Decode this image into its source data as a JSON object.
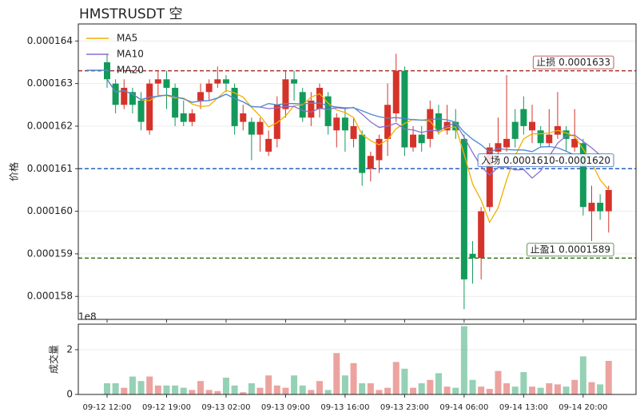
{
  "chart_data": {
    "type": "candlestick",
    "title": "HMSTRUSDT 空",
    "y_label": "价格",
    "legend": "upper left",
    "grid": true,
    "up_color": "#d5332a",
    "down_color": "#139a5a",
    "categories": [
      "09-12 12:00",
      null,
      null,
      null,
      null,
      null,
      null,
      "09-12 19:00",
      null,
      null,
      null,
      null,
      null,
      null,
      "09-13 02:00",
      null,
      null,
      null,
      null,
      null,
      null,
      "09-13 09:00",
      null,
      null,
      null,
      null,
      null,
      null,
      "09-13 16:00",
      null,
      null,
      null,
      null,
      null,
      null,
      "09-13 23:00",
      null,
      null,
      null,
      null,
      null,
      null,
      "09-14 06:00",
      null,
      null,
      null,
      null,
      null,
      null,
      "09-14 13:00",
      null,
      null,
      null,
      null,
      null,
      null,
      "09-14 20:00",
      null,
      null,
      null
    ],
    "open": [
      0.0001635,
      0.000163,
      0.0001625,
      0.0001628,
      0.0001626,
      0.0001619,
      0.000163,
      0.0001631,
      0.0001629,
      0.0001623,
      0.0001621,
      0.0001626,
      0.0001628,
      0.000163,
      0.0001631,
      0.0001629,
      0.0001621,
      0.0001621,
      0.0001618,
      0.0001614,
      0.0001617,
      0.0001624,
      0.0001631,
      0.0001628,
      0.0001622,
      0.0001624,
      0.0001627,
      0.0001619,
      0.0001622,
      0.0001617,
      0.0001618,
      0.000161,
      0.0001612,
      0.0001617,
      0.0001623,
      0.0001633,
      0.0001615,
      0.0001618,
      0.0001617,
      0.0001623,
      0.0001619,
      0.0001621,
      0.0001617,
      0.000159,
      0.0001589,
      0.0001601,
      0.0001614,
      0.0001615,
      0.0001621,
      0.0001624,
      0.0001619,
      0.0001619,
      0.0001616,
      0.0001618,
      0.0001619,
      0.0001615,
      0.0001616,
      0.00016,
      0.0001602,
      0.00016
    ],
    "high": [
      0.0001637,
      0.0001631,
      0.0001631,
      0.0001629,
      0.0001628,
      0.0001631,
      0.0001633,
      0.0001633,
      0.000163,
      0.0001626,
      0.0001624,
      0.000163,
      0.0001631,
      0.0001634,
      0.0001632,
      0.000163,
      0.0001625,
      0.0001622,
      0.0001622,
      0.0001619,
      0.0001627,
      0.0001633,
      0.0001633,
      0.0001629,
      0.0001628,
      0.000163,
      0.0001628,
      0.0001623,
      0.0001624,
      0.0001622,
      0.0001619,
      0.0001614,
      0.0001618,
      0.000163,
      0.0001637,
      0.0001634,
      0.000162,
      0.000162,
      0.0001626,
      0.0001625,
      0.0001625,
      0.0001624,
      0.0001618,
      0.0001593,
      0.0001601,
      0.0001616,
      0.0001622,
      0.0001632,
      0.0001624,
      0.0001627,
      0.0001625,
      0.000162,
      0.0001624,
      0.0001628,
      0.000162,
      0.0001624,
      0.0001617,
      0.0001606,
      0.0001604,
      0.0001606
    ],
    "low": [
      0.0001629,
      0.0001623,
      0.0001624,
      0.0001623,
      0.0001619,
      0.0001618,
      0.0001627,
      0.0001624,
      0.000162,
      0.000162,
      0.000162,
      0.0001624,
      0.0001626,
      0.0001629,
      0.0001628,
      0.0001618,
      0.0001619,
      0.0001612,
      0.0001614,
      0.0001613,
      0.0001615,
      0.0001622,
      0.0001626,
      0.0001621,
      0.000162,
      0.0001622,
      0.0001618,
      0.0001615,
      0.0001614,
      0.0001615,
      0.0001606,
      0.0001607,
      0.0001609,
      0.0001613,
      0.0001621,
      0.0001613,
      0.0001614,
      0.0001614,
      0.0001615,
      0.0001618,
      0.0001618,
      0.0001617,
      0.0001577,
      0.0001583,
      0.0001584,
      0.00016,
      0.0001612,
      0.0001614,
      0.0001615,
      0.0001618,
      0.0001616,
      0.0001615,
      0.0001615,
      0.0001617,
      0.0001614,
      0.0001614,
      0.0001599,
      0.0001593,
      0.0001598,
      0.0001595
    ],
    "close": [
      0.0001631,
      0.0001625,
      0.0001629,
      0.0001625,
      0.0001621,
      0.000163,
      0.0001631,
      0.0001629,
      0.0001622,
      0.0001621,
      0.0001623,
      0.0001628,
      0.000163,
      0.0001631,
      0.000163,
      0.000162,
      0.0001623,
      0.0001618,
      0.0001621,
      0.0001617,
      0.0001625,
      0.0001631,
      0.000163,
      0.0001622,
      0.0001626,
      0.0001629,
      0.000162,
      0.0001622,
      0.0001619,
      0.000162,
      0.0001609,
      0.0001613,
      0.0001617,
      0.0001625,
      0.0001633,
      0.0001615,
      0.0001618,
      0.0001616,
      0.0001624,
      0.0001619,
      0.0001621,
      0.0001619,
      0.0001584,
      0.0001589,
      0.00016,
      0.0001615,
      0.0001616,
      0.0001617,
      0.0001617,
      0.000162,
      0.0001621,
      0.0001616,
      0.0001618,
      0.000162,
      0.0001617,
      0.0001617,
      0.0001601,
      0.0001602,
      0.00016,
      0.0001605
    ],
    "ma": [
      {
        "name": "MA5",
        "color": "#f0b000",
        "values": [
          0.0001631,
          0.0001628,
          0.00016283,
          0.00016275,
          0.00016262,
          0.0001626,
          0.00016272,
          0.00016272,
          0.00016266,
          0.00016266,
          0.00016252,
          0.00016246,
          0.00016248,
          0.00016266,
          0.00016284,
          0.00016278,
          0.00016268,
          0.00016244,
          0.00016224,
          0.00016198,
          0.00016208,
          0.00016224,
          0.00016248,
          0.0001625,
          0.00016268,
          0.00016276,
          0.00016254,
          0.00016238,
          0.00016232,
          0.0001622,
          0.0001618,
          0.00016166,
          0.00016156,
          0.00016168,
          0.00016194,
          0.00016206,
          0.00016216,
          0.00016214,
          0.00016212,
          0.00016184,
          0.00016196,
          0.00016198,
          0.00016134,
          0.00016064,
          0.00016026,
          0.00015974,
          0.00016008,
          0.00016074,
          0.0001613,
          0.0001617,
          0.00016182,
          0.00016182,
          0.00016184,
          0.0001619,
          0.00016184,
          0.00016176,
          0.00016146,
          0.00016114,
          0.00016074,
          0.0001605
        ]
      },
      {
        "name": "MA10",
        "color": "#8a6fd0",
        "values": [
          0.0001631,
          0.0001628,
          0.00016283,
          0.00016275,
          0.00016262,
          0.00016268,
          0.0001627,
          0.00016273,
          0.00016269,
          0.00016264,
          0.00016256,
          0.00016259,
          0.0001626,
          0.00016266,
          0.00016275,
          0.00016265,
          0.00016257,
          0.00016246,
          0.00016245,
          0.00016241,
          0.00016243,
          0.00016246,
          0.00016246,
          0.00016237,
          0.00016233,
          0.00016242,
          0.00016239,
          0.00016243,
          0.00016241,
          0.00016244,
          0.00016228,
          0.0001621,
          0.00016197,
          0.000162,
          0.00016207,
          0.00016193,
          0.00016191,
          0.00016185,
          0.0001619,
          0.00016189,
          0.00016201,
          0.00016207,
          0.00016174,
          0.00016138,
          0.00016105,
          0.00016085,
          0.00016103,
          0.00016104,
          0.00016097,
          0.00016098,
          0.00016078,
          0.00016095,
          0.00016129,
          0.0001616,
          0.00016177,
          0.00016179,
          0.00016164,
          0.00016149,
          0.00016132,
          0.00016117
        ]
      },
      {
        "name": "MA20",
        "color": "#4a8ad0",
        "values": [
          0.0001631,
          0.0001628,
          0.00016283,
          0.00016275,
          0.00016262,
          0.00016268,
          0.0001627,
          0.00016273,
          0.00016269,
          0.00016264,
          0.00016256,
          0.00016259,
          0.0001626,
          0.00016266,
          0.00016275,
          0.00016265,
          0.00016257,
          0.00016246,
          0.00016245,
          0.00016253,
          0.0001625,
          0.00016253,
          0.00016253,
          0.00016252,
          0.00016254,
          0.00016254,
          0.00016248,
          0.00016245,
          0.00016243,
          0.00016243,
          0.00016236,
          0.00016228,
          0.00016222,
          0.00016219,
          0.0001622,
          0.00016218,
          0.00016215,
          0.00016214,
          0.00016216,
          0.00016217,
          0.00016215,
          0.00016209,
          0.00016186,
          0.00016169,
          0.00016156,
          0.00016139,
          0.00016147,
          0.00016145,
          0.00016144,
          0.00016144,
          0.0001614,
          0.00016151,
          0.00016152,
          0.00016149,
          0.00016141,
          0.00016132,
          0.00016134,
          0.00016127,
          0.00016115,
          0.00016108
        ]
      }
    ],
    "ylim": [
      0.00015746,
      0.0001644
    ],
    "yticks": [
      0.000158,
      0.000159,
      {
        "value": 0.00016,
        "label": "0.000160"
      },
      0.000161,
      0.000162,
      0.000163,
      0.000164
    ],
    "hlines": [
      {
        "value": 0.0001633,
        "label": "止损 0.0001633",
        "color": "#a8322d"
      },
      {
        "value": 0.000161,
        "label": "入场 0.0001610-0.0001620",
        "color": "#2a62b8"
      },
      {
        "value": 0.0001589,
        "label": "止盈1 0.0001589",
        "color": "#3e7a26"
      }
    ],
    "volume": {
      "y_label": "成交量",
      "offset_label": "1e8",
      "ylim": [
        0,
        3.14
      ],
      "yticks": [
        0,
        2
      ],
      "values": [
        0.5,
        0.5,
        0.3,
        0.8,
        0.6,
        0.8,
        0.4,
        0.4,
        0.4,
        0.3,
        0.2,
        0.6,
        0.2,
        0.15,
        0.75,
        0.4,
        0.1,
        0.5,
        0.3,
        0.85,
        0.4,
        0.3,
        0.85,
        0.4,
        0.2,
        0.6,
        0.2,
        1.85,
        0.85,
        1.4,
        0.5,
        0.5,
        0.2,
        0.3,
        1.45,
        1.15,
        0.3,
        0.5,
        0.65,
        0.95,
        0.35,
        0.3,
        3.05,
        0.65,
        0.35,
        0.25,
        1.05,
        0.5,
        0.35,
        1.0,
        0.35,
        0.3,
        0.5,
        0.45,
        0.35,
        0.65,
        1.7,
        0.55,
        0.45,
        1.5
      ]
    }
  }
}
